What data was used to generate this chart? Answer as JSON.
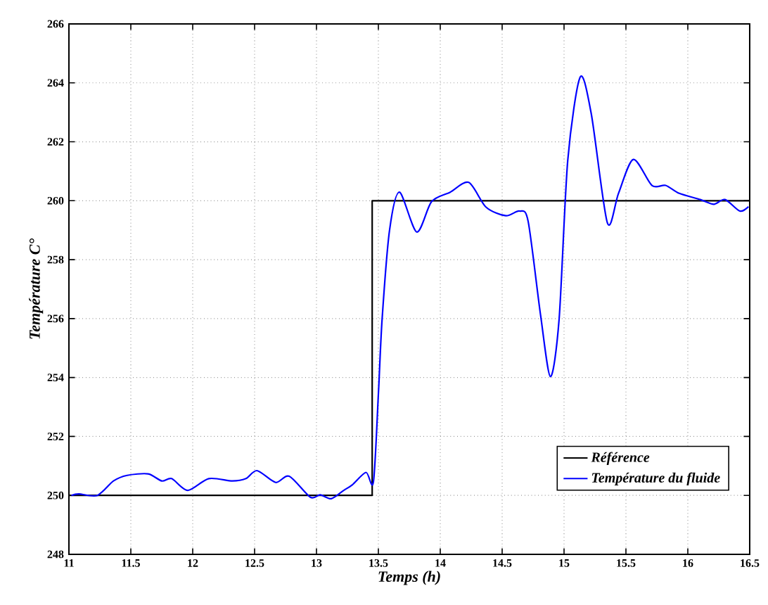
{
  "chart_data": {
    "type": "line",
    "xlabel": "Temps (h)",
    "ylabel": "Température C°",
    "xlim": [
      11,
      16.5
    ],
    "ylim": [
      248,
      266
    ],
    "xticks": [
      11,
      11.5,
      12,
      12.5,
      13,
      13.5,
      14,
      14.5,
      15,
      15.5,
      16,
      16.5
    ],
    "yticks": [
      248,
      250,
      252,
      254,
      256,
      258,
      260,
      262,
      264,
      266
    ],
    "grid": true,
    "legend": "bottom right",
    "line_style": "solid",
    "marker": "none",
    "series": [
      {
        "name": "Référence",
        "color": "#000000",
        "x": [
          11,
          13.45,
          13.45,
          16.5
        ],
        "values": [
          250,
          250,
          260,
          260
        ]
      },
      {
        "name": "Température du fluide",
        "color": "#0000ff",
        "x": [
          11.02,
          11.08,
          11.23,
          11.36,
          11.47,
          11.64,
          11.75,
          11.83,
          11.96,
          12.13,
          12.32,
          12.43,
          12.52,
          12.67,
          12.78,
          12.95,
          13.03,
          13.12,
          13.22,
          13.29,
          13.4,
          13.46,
          13.5,
          13.53,
          13.59,
          13.67,
          13.81,
          13.93,
          14.08,
          14.23,
          14.37,
          14.53,
          14.64,
          14.71,
          14.81,
          14.89,
          14.96,
          15.03,
          15.13,
          15.22,
          15.35,
          15.44,
          15.56,
          15.71,
          15.82,
          15.93,
          16.1,
          16.21,
          16.3,
          16.42,
          16.49
        ],
        "values": [
          250.0,
          250.05,
          250.0,
          250.49,
          250.68,
          250.73,
          250.49,
          250.57,
          250.17,
          250.57,
          250.49,
          250.57,
          250.84,
          250.44,
          250.65,
          249.94,
          250.02,
          249.89,
          250.17,
          250.36,
          250.78,
          250.46,
          253.43,
          255.97,
          258.99,
          260.29,
          258.94,
          259.97,
          260.29,
          260.62,
          259.78,
          259.49,
          259.65,
          259.3,
          256.13,
          254.03,
          255.97,
          261.37,
          264.19,
          262.95,
          259.25,
          260.25,
          261.4,
          260.52,
          260.52,
          260.25,
          260.04,
          259.88,
          260.04,
          259.65,
          259.8
        ]
      }
    ]
  }
}
